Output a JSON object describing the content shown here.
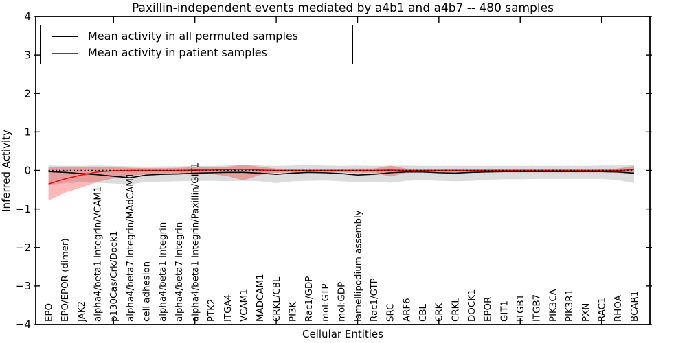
{
  "title": "Paxillin-independent events mediated by a4b1 and a4b7 -- 480 samples",
  "legend": {
    "items": [
      {
        "label": "Mean activity in all permuted samples",
        "color": "#000000"
      },
      {
        "label": "Mean activity in patient samples",
        "color": "#ff0000"
      }
    ]
  },
  "chart_data": {
    "type": "line",
    "title": "Paxillin-independent events mediated by a4b1 and a4b7 -- 480 samples",
    "xlabel": "Cellular Entities",
    "ylabel": "Inferred Activity",
    "ylim": [
      -4,
      4
    ],
    "yticks": [
      -4,
      -3,
      -2,
      -1,
      0,
      1,
      2,
      3,
      4
    ],
    "grid": false,
    "legend_position": "upper left",
    "x_major_tick_indices": [
      4,
      9,
      14,
      19,
      24,
      29,
      34
    ],
    "categories": [
      "EPO",
      "EPO/EPOR (dimer)",
      "JAK2",
      "alpha4/beta1 Integrin/VCAM1",
      "p130Cas/Crk/Dock1",
      "alpha4/beta7 Integrin/MAdCAM1",
      "cell adhesion",
      "alpha4/beta1 Integrin",
      "alpha4/beta7 Integrin",
      "alpha4/beta1 Integrin/Paxillin/GIT1",
      "PTK2",
      "ITGA4",
      "VCAM1",
      "MADCAM1",
      "CRKL/CBL",
      "PI3K",
      "Rac1/GDP",
      "mol:GTP",
      "mol:GDP",
      "lamellipodium assembly",
      "Rac1/GTP",
      "SRC",
      "ARF6",
      "CBL",
      "CRK",
      "CRKL",
      "DOCK1",
      "EPOR",
      "GIT1",
      "ITGB1",
      "ITGB7",
      "PIK3CA",
      "PIK3R1",
      "PXN",
      "RAC1",
      "RHOA",
      "BCAR1"
    ],
    "series": [
      {
        "name": "Mean activity in all permuted samples",
        "color": "#000000",
        "values": [
          -0.03,
          -0.05,
          -0.08,
          -0.11,
          -0.15,
          -0.19,
          -0.12,
          -0.1,
          -0.09,
          -0.07,
          -0.06,
          -0.05,
          -0.05,
          -0.07,
          -0.1,
          -0.07,
          -0.05,
          -0.06,
          -0.08,
          -0.12,
          -0.1,
          -0.06,
          -0.04,
          -0.04,
          -0.06,
          -0.07,
          -0.05,
          -0.04,
          -0.03,
          -0.03,
          -0.03,
          -0.03,
          -0.03,
          -0.03,
          -0.03,
          -0.04,
          -0.07
        ]
      },
      {
        "name": "Mean activity in patient samples",
        "color": "#ff0000",
        "values": [
          -0.35,
          -0.22,
          -0.12,
          -0.04,
          -0.01,
          0,
          0,
          0,
          0,
          0.01,
          0.01,
          0.02,
          0.03,
          0.01,
          0,
          0,
          0,
          0,
          0,
          0,
          0,
          0.01,
          0,
          0,
          0,
          0,
          0,
          0,
          0,
          0,
          0,
          0,
          0,
          0,
          0,
          0,
          0.02
        ]
      }
    ],
    "bands": [
      {
        "name": "permuted-samples-range",
        "color": "rgba(128,128,128,0.28)",
        "hi": [
          0.13,
          0.12,
          0.12,
          0.13,
          0.12,
          0.11,
          0.1,
          0.11,
          0.11,
          0.12,
          0.12,
          0.13,
          0.15,
          0.13,
          0.12,
          0.13,
          0.14,
          0.13,
          0.12,
          0.13,
          0.12,
          0.12,
          0.13,
          0.12,
          0.12,
          0.12,
          0.12,
          0.12,
          0.12,
          0.12,
          0.12,
          0.12,
          0.12,
          0.12,
          0.13,
          0.13,
          0.14
        ],
        "lo": [
          -0.38,
          -0.33,
          -0.31,
          -0.32,
          -0.34,
          -0.36,
          -0.3,
          -0.29,
          -0.28,
          -0.27,
          -0.27,
          -0.28,
          -0.27,
          -0.28,
          -0.33,
          -0.28,
          -0.27,
          -0.26,
          -0.28,
          -0.31,
          -0.29,
          -0.32,
          -0.27,
          -0.25,
          -0.27,
          -0.28,
          -0.27,
          -0.24,
          -0.23,
          -0.23,
          -0.22,
          -0.22,
          -0.22,
          -0.22,
          -0.22,
          -0.25,
          -0.33
        ]
      },
      {
        "name": "patient-samples-range",
        "color": "rgba(255,0,0,0.28)",
        "hi": [
          0.08,
          0.1,
          0.1,
          0.1,
          0.08,
          0.07,
          0.06,
          0.06,
          0.07,
          0.09,
          0.08,
          0.1,
          0.15,
          0.1,
          0.05,
          0.04,
          0.04,
          0.04,
          0.04,
          0.05,
          0.05,
          0.13,
          0.05,
          0.04,
          0.04,
          0.04,
          0.04,
          0.04,
          0.04,
          0.04,
          0.04,
          0.04,
          0.04,
          0.04,
          0.04,
          0.05,
          0.12
        ],
        "lo": [
          -0.78,
          -0.58,
          -0.44,
          -0.3,
          -0.2,
          -0.14,
          -0.1,
          -0.09,
          -0.09,
          -0.11,
          -0.09,
          -0.15,
          -0.26,
          -0.12,
          -0.06,
          -0.05,
          -0.05,
          -0.05,
          -0.05,
          -0.06,
          -0.06,
          -0.16,
          -0.06,
          -0.05,
          -0.05,
          -0.05,
          -0.05,
          -0.05,
          -0.05,
          -0.05,
          -0.05,
          -0.05,
          -0.05,
          -0.05,
          -0.05,
          -0.06,
          -0.1
        ]
      }
    ],
    "zero_line": {
      "y": 0,
      "style": "dotted",
      "color": "#000000"
    }
  }
}
